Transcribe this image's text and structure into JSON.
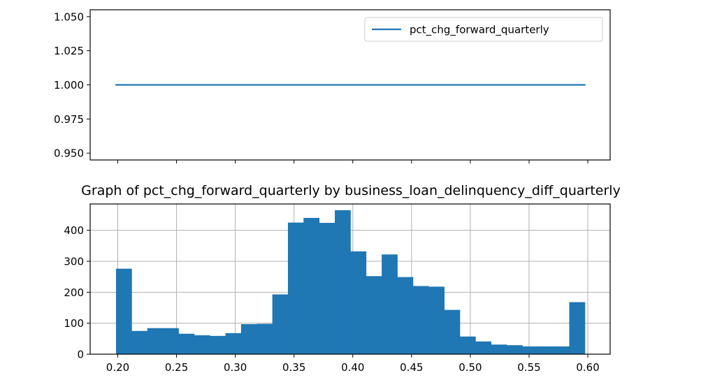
{
  "chart_data": [
    {
      "type": "line",
      "title": "",
      "xlabel": "",
      "ylabel": "",
      "ylim": [
        0.945,
        1.055
      ],
      "x": [
        0.198,
        0.598
      ],
      "xticks": [
        0.2,
        0.25,
        0.3,
        0.35,
        0.4,
        0.45,
        0.5,
        0.55,
        0.6
      ],
      "xtick_labels_visible": false,
      "yticks": [
        0.95,
        0.975,
        1.0,
        1.025,
        1.05
      ],
      "ytick_labels": [
        "0.950",
        "0.975",
        "1.000",
        "1.025",
        "1.050"
      ],
      "grid": false,
      "legend_position": "upper-right",
      "series": [
        {
          "name": "pct_chg_forward_quarterly",
          "color": "#1f77b4",
          "values": [
            1.0,
            1.0
          ]
        }
      ]
    },
    {
      "type": "bar",
      "title": "Graph of pct_chg_forward_quarterly by business_loan_delinquency_diff_quarterly",
      "xlabel": "",
      "ylabel": "",
      "grid": true,
      "color": "#1f77b4",
      "xlim": [
        0.1765,
        0.619
      ],
      "ylim": [
        0,
        485
      ],
      "xticks": [
        0.2,
        0.25,
        0.3,
        0.35,
        0.4,
        0.45,
        0.5,
        0.55,
        0.6
      ],
      "xtick_labels": [
        "0.20",
        "0.25",
        "0.30",
        "0.35",
        "0.40",
        "0.45",
        "0.50",
        "0.55",
        "0.60"
      ],
      "yticks": [
        0,
        100,
        200,
        300,
        400
      ],
      "ytick_labels": [
        "0",
        "100",
        "200",
        "300",
        "400"
      ],
      "bin_start": 0.1985,
      "bin_width": 0.0133,
      "values": [
        276,
        75,
        84,
        84,
        66,
        61,
        59,
        68,
        97,
        98,
        193,
        425,
        440,
        424,
        465,
        332,
        252,
        322,
        249,
        220,
        218,
        143,
        57,
        41,
        31,
        29,
        25,
        25,
        25,
        168
      ]
    }
  ]
}
